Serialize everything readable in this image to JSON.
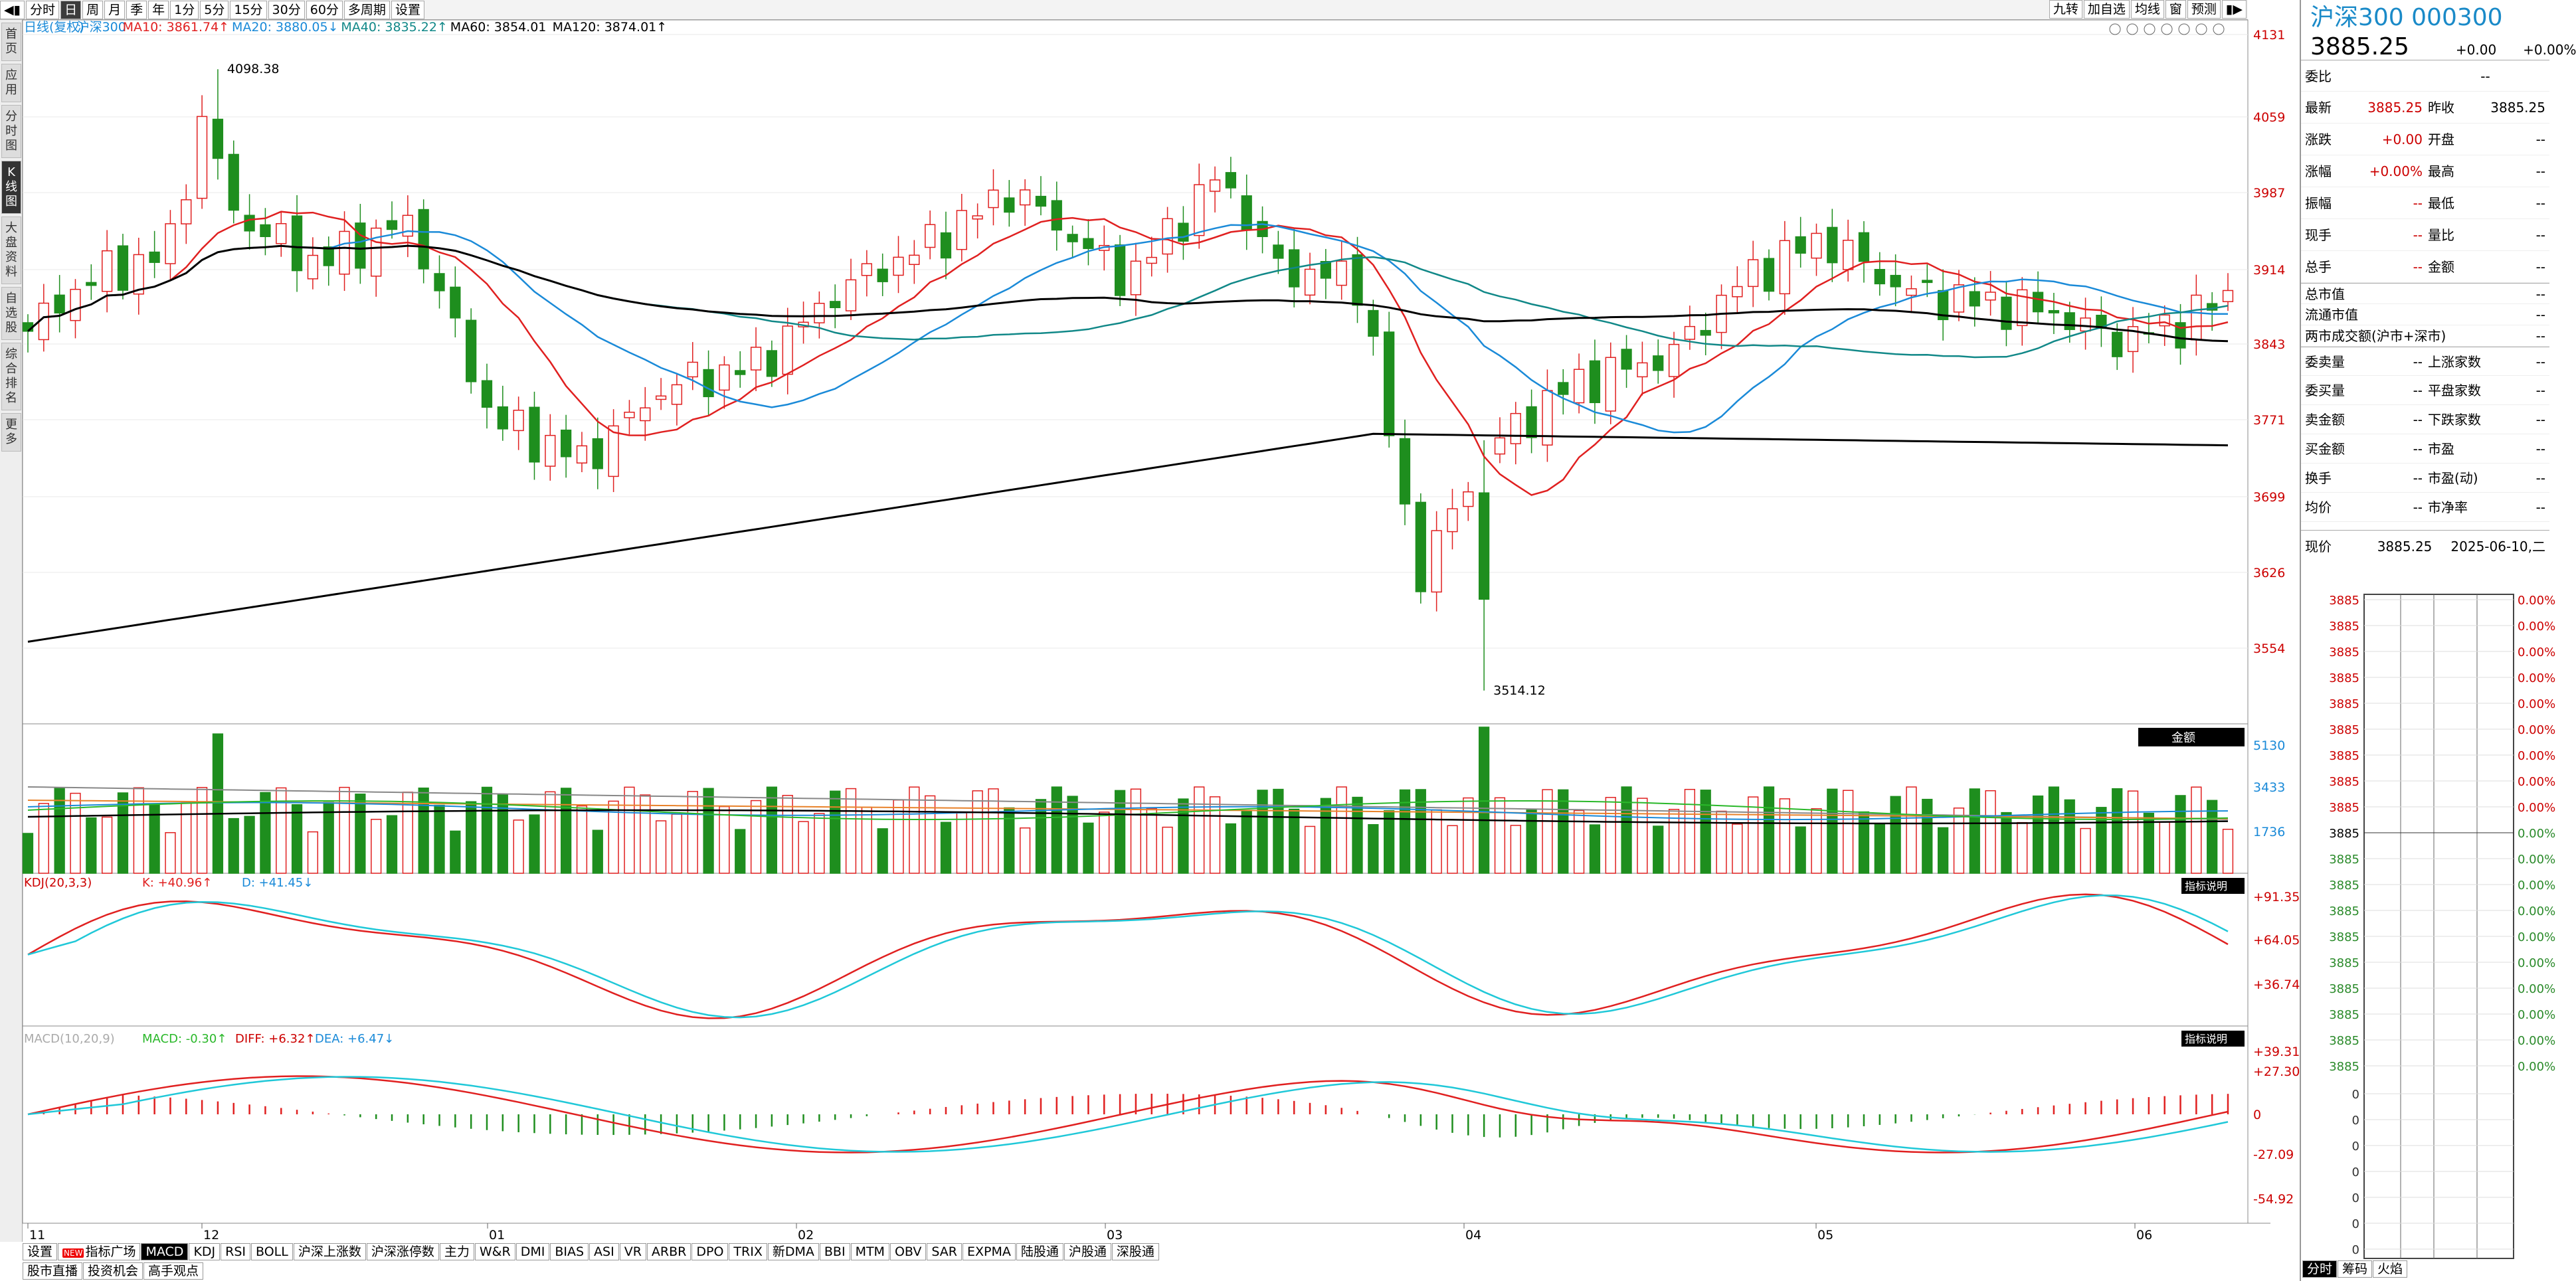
{
  "toolbar": {
    "buttons": [
      "分时",
      "日",
      "周",
      "月",
      "季",
      "年",
      "1分",
      "5分",
      "15分",
      "30分",
      "60分",
      "多周期",
      "设置"
    ],
    "selected": "日",
    "right": [
      "九转",
      "加自选",
      "均线",
      "窗",
      "预测"
    ]
  },
  "sidebar": [
    "首页",
    "应用",
    "分时图",
    "K线图",
    "大盘资料",
    "自选股",
    "综合排名",
    "更多"
  ],
  "sidebar_selected": "K线图",
  "main_legend": {
    "prefix": "日线(复权)",
    "name": "沪深300",
    "ma10": "MA10: 3861.74↑",
    "ma20": "MA20: 3880.05↓",
    "ma40": "MA40: 3835.22↑",
    "ma60": "MA60: 3854.01",
    "ma120": "MA120: 3874.01↑"
  },
  "price_axis": [
    "4131",
    "4059",
    "3987",
    "3914",
    "3843",
    "3771",
    "3699",
    "3626",
    "3554"
  ],
  "annotations": {
    "high": "4098.38",
    "low": "3514.12"
  },
  "volume": {
    "axis": [
      "5130",
      "3433",
      "1736"
    ],
    "tag": "金额"
  },
  "kdj": {
    "label": "KDJ(20,3,3)",
    "k": "K: +40.96↑",
    "d": "D: +41.45↓",
    "axis": [
      "+91.35",
      "+64.05",
      "+36.74"
    ],
    "tag": "指标说明"
  },
  "macd": {
    "label": "MACD(10,20,9)",
    "macd": "MACD: -0.30↑",
    "diff": "DIFF: +6.32↑",
    "dea": "DEA: +6.47↓",
    "axis": [
      "+39.31",
      "+27.30",
      "0",
      "-27.09",
      "-54.92"
    ],
    "tag": "指标说明"
  },
  "date_axis": [
    "11",
    "12",
    "01",
    "02",
    "03",
    "04",
    "05",
    "06"
  ],
  "bottom_tabs": [
    "设置",
    "指标广场",
    "MACD",
    "KDJ",
    "RSI",
    "BOLL",
    "沪深上涨数",
    "沪深涨停数",
    "主力",
    "W&R",
    "DMI",
    "BIAS",
    "ASI",
    "VR",
    "ARBR",
    "DPO",
    "TRIX",
    "新DMA",
    "BBI",
    "MTM",
    "OBV",
    "SAR",
    "EXPMA",
    "陆股通",
    "沪股通",
    "深股通"
  ],
  "bottom_selected": "MACD",
  "new_badge": "NEW",
  "bottom_links": [
    "股市直播",
    "投资机会",
    "高手观点"
  ],
  "quote": {
    "title": "沪深300 000300",
    "price": "3885.25",
    "change": "+0.00",
    "pct": "+0.00%",
    "weibi": "委比",
    "weibi_v": "--",
    "rows": [
      [
        "最新",
        "3885.25",
        "昨收",
        "3885.25"
      ],
      [
        "涨跌",
        "+0.00",
        "开盘",
        "--"
      ],
      [
        "涨幅",
        "+0.00%",
        "最高",
        "--"
      ],
      [
        "振幅",
        "--",
        "最低",
        "--"
      ],
      [
        "现手",
        "--",
        "量比",
        "--"
      ],
      [
        "总手",
        "--",
        "金额",
        "--"
      ]
    ],
    "rows2": [
      [
        "总市值",
        "--"
      ],
      [
        "流通市值",
        "--"
      ],
      [
        "两市成交额(沪市+深市)",
        "--"
      ]
    ],
    "rows3": [
      [
        "委卖量",
        "--",
        "上涨家数",
        "--"
      ],
      [
        "委买量",
        "--",
        "平盘家数",
        "--"
      ],
      [
        "卖金额",
        "--",
        "下跌家数",
        "--"
      ],
      [
        "买金额",
        "--",
        "市盈",
        "--"
      ],
      [
        "换手",
        "--",
        "市盈(动)",
        "--"
      ],
      [
        "均价",
        "--",
        "市净率",
        "--"
      ]
    ],
    "now_label": "现价",
    "now_price": "3885.25",
    "now_date": "2025-06-10,二"
  },
  "mini_axis": {
    "price": "3885",
    "pct": "0.00%",
    "vol": "0"
  },
  "rp_tabs": [
    "分时",
    "筹码",
    "火焰"
  ],
  "colors": {
    "up": "#e02020",
    "down": "#1e8e1e",
    "ma10": "#e02020",
    "ma20": "#1a8ad8",
    "ma40": "#118888",
    "ma60": "#000000",
    "ma120": "#000000",
    "kline_k": "#e02020",
    "kline_d": "#20c8d8"
  }
}
